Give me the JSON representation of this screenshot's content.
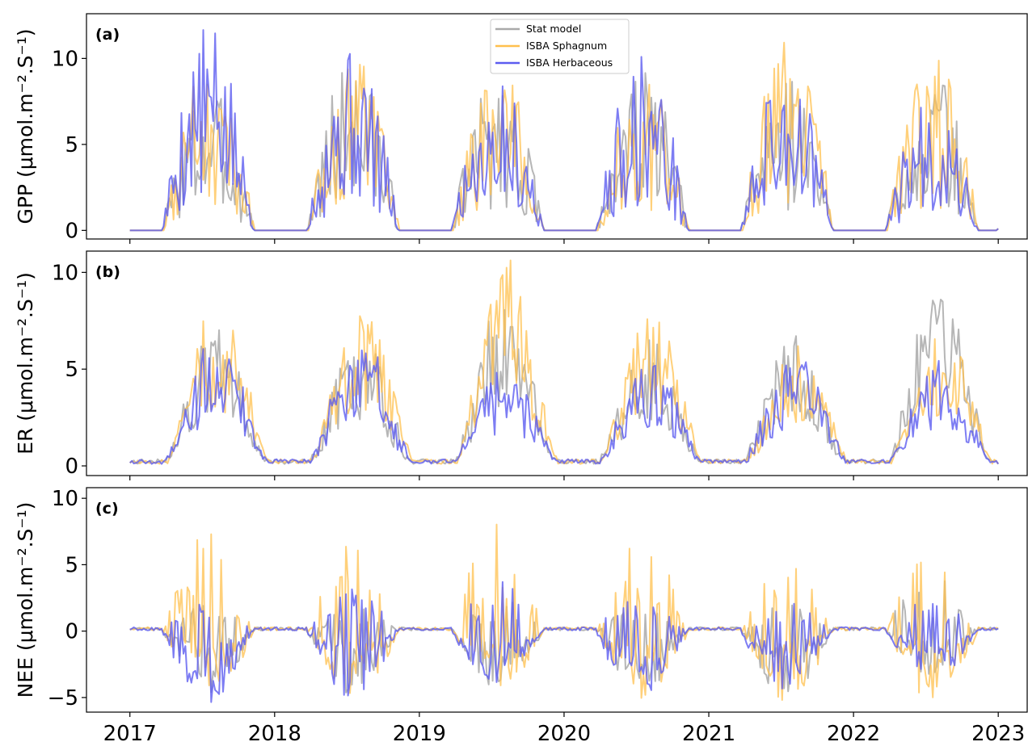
{
  "chart_data": [
    {
      "type": "line",
      "panel_tag": "(a)",
      "ylabel": "GPP (μmol.m⁻².S⁻¹)",
      "xlim": [
        2016.7,
        2023.2
      ],
      "ylim": [
        -0.5,
        12.6
      ],
      "yticks": [
        0,
        5,
        10
      ],
      "legend": {
        "placement": "top-center",
        "entries": [
          "Stat model",
          "ISBA Sphagnum",
          "ISBA Herbaceous"
        ]
      },
      "series": [
        {
          "name": "Stat model",
          "color": "#a9a9a9",
          "season_peaks": [
            8.5,
            10.5,
            9.5,
            9.5,
            9.5,
            9.3
          ],
          "min": 0.0
        },
        {
          "name": "ISBA Sphagnum",
          "color": "#ffc04d",
          "season_peaks": [
            10.4,
            10.4,
            9.5,
            9.2,
            11.2,
            10.2
          ],
          "min": 0.0
        },
        {
          "name": "ISBA Herbaceous",
          "color": "#5c5cf0",
          "season_peaks": [
            12.0,
            10.8,
            9.3,
            10.5,
            9.8,
            7.8
          ],
          "min": 0.0
        }
      ]
    },
    {
      "type": "line",
      "panel_tag": "(b)",
      "ylabel": "ER (μmol.m⁻².S⁻¹)",
      "xlim": [
        2016.7,
        2023.2
      ],
      "ylim": [
        -0.5,
        11.1
      ],
      "yticks": [
        0,
        5,
        10
      ],
      "series": [
        {
          "name": "Stat model",
          "color": "#a9a9a9",
          "season_peaks": [
            7.0,
            6.5,
            8.5,
            6.5,
            6.7,
            9.3
          ],
          "min": 0.0
        },
        {
          "name": "ISBA Sphagnum",
          "color": "#ffc04d",
          "season_peaks": [
            8.8,
            8.2,
            10.6,
            7.9,
            6.3,
            7.3
          ],
          "min": 0.0
        },
        {
          "name": "ISBA Herbaceous",
          "color": "#5c5cf0",
          "season_peaks": [
            6.6,
            6.6,
            5.3,
            5.4,
            5.8,
            5.4
          ],
          "min": 0.0
        }
      ]
    },
    {
      "type": "line",
      "panel_tag": "(c)",
      "ylabel": "NEE (μmol.m⁻².S⁻¹)",
      "xlim": [
        2016.7,
        2023.2
      ],
      "ylim": [
        -6.1,
        10.8
      ],
      "yticks": [
        -5,
        0,
        5,
        10
      ],
      "xticks": [
        2017,
        2018,
        2019,
        2020,
        2021,
        2022,
        2023
      ],
      "xlabel": "",
      "series": [
        {
          "name": "Stat model",
          "color": "#a9a9a9",
          "season_peaks": [
            2.0,
            2.0,
            2.5,
            2.0,
            2.0,
            5.0
          ],
          "season_troughs": [
            -5.0,
            -4.8,
            -4.5,
            -4.5,
            -5.0,
            -3.5
          ]
        },
        {
          "name": "ISBA Sphagnum",
          "color": "#ffc04d",
          "season_peaks": [
            7.6,
            7.0,
            10.0,
            7.3,
            5.3,
            6.4
          ],
          "season_troughs": [
            -5.3,
            -5.3,
            -4.4,
            -5.3,
            -5.3,
            -5.4
          ]
        },
        {
          "name": "ISBA Herbaceous",
          "color": "#5c5cf0",
          "season_peaks": [
            2.2,
            3.2,
            3.8,
            3.7,
            2.2,
            2.4
          ],
          "season_troughs": [
            -5.4,
            -5.1,
            -4.3,
            -5.4,
            -5.0,
            -3.8
          ]
        }
      ]
    }
  ]
}
